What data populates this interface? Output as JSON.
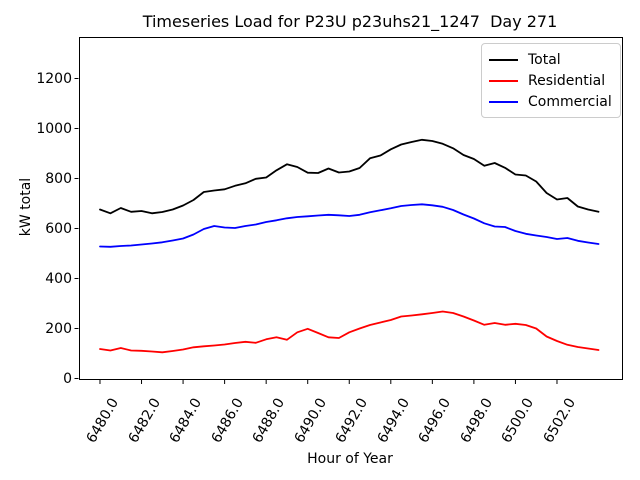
{
  "title": "Timeseries Load for P23U p23uhs21_1247  Day 271",
  "chart_data": {
    "type": "line",
    "title": "Timeseries Load for P23U p23uhs21_1247  Day 271",
    "xlabel": "Hour of Year",
    "ylabel": "kW total",
    "grid": false,
    "legend_position": "upper right",
    "xlim": [
      6478.99,
      6505.13
    ],
    "ylim": [
      -2,
      1366
    ],
    "xticks": [
      6480,
      6482,
      6484,
      6486,
      6488,
      6490,
      6492,
      6494,
      6496,
      6498,
      6500,
      6502
    ],
    "xtick_labels": [
      "6480.0",
      "6482.0",
      "6484.0",
      "6486.0",
      "6488.0",
      "6490.0",
      "6492.0",
      "6494.0",
      "6496.0",
      "6498.0",
      "6500.0",
      "6502.0"
    ],
    "yticks": [
      0,
      200,
      400,
      600,
      800,
      1000,
      1200
    ],
    "ytick_labels": [
      "0",
      "200",
      "400",
      "600",
      "800",
      "1000",
      "1200"
    ],
    "x": [
      6480.0,
      6480.5,
      6481.0,
      6481.5,
      6482.0,
      6482.5,
      6483.0,
      6483.5,
      6484.0,
      6484.5,
      6485.0,
      6485.5,
      6486.0,
      6486.5,
      6487.0,
      6487.5,
      6488.0,
      6488.5,
      6489.0,
      6489.5,
      6490.0,
      6490.5,
      6491.0,
      6491.5,
      6492.0,
      6492.5,
      6493.0,
      6493.5,
      6494.0,
      6494.5,
      6495.0,
      6495.5,
      6496.0,
      6496.5,
      6497.0,
      6497.5,
      6498.0,
      6498.5,
      6499.0,
      6499.5,
      6500.0,
      6500.5,
      6501.0,
      6501.5,
      6502.0,
      6502.5,
      6503.0,
      6503.5,
      6504.0
    ],
    "series": [
      {
        "name": "Total",
        "color": "#000000",
        "values": [
          676,
          661,
          682,
          667,
          670,
          661,
          666,
          676,
          692,
          714,
          746,
          752,
          757,
          771,
          781,
          799,
          804,
          833,
          857,
          846,
          823,
          822,
          840,
          824,
          828,
          842,
          881,
          892,
          917,
          936,
          946,
          955,
          950,
          939,
          921,
          894,
          878,
          851,
          862,
          843,
          816,
          812,
          788,
          742,
          716,
          722,
          688,
          676,
          667
        ]
      },
      {
        "name": "Residential",
        "color": "#ff0000",
        "values": [
          118,
          112,
          122,
          112,
          111,
          108,
          105,
          110,
          116,
          125,
          129,
          132,
          136,
          142,
          147,
          143,
          157,
          165,
          155,
          185,
          199,
          182,
          165,
          162,
          185,
          200,
          214,
          224,
          234,
          248,
          252,
          257,
          262,
          268,
          262,
          248,
          232,
          215,
          222,
          215,
          219,
          214,
          200,
          168,
          150,
          135,
          126,
          120,
          114
        ]
      },
      {
        "name": "Commercial",
        "color": "#0000ff",
        "values": [
          528,
          527,
          530,
          532,
          536,
          540,
          545,
          552,
          560,
          576,
          598,
          610,
          604,
          602,
          610,
          616,
          626,
          633,
          641,
          646,
          649,
          652,
          655,
          653,
          650,
          655,
          665,
          673,
          681,
          690,
          694,
          697,
          693,
          687,
          674,
          656,
          640,
          621,
          608,
          606,
          590,
          579,
          572,
          566,
          558,
          562,
          551,
          544,
          538
        ]
      }
    ]
  }
}
